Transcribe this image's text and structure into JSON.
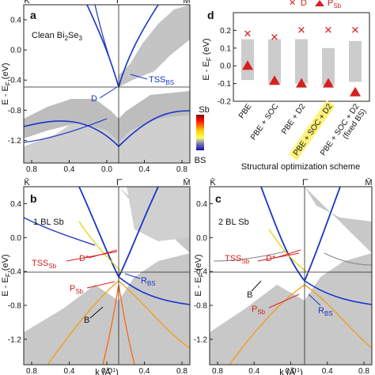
{
  "chart_data": [
    {
      "type": "other",
      "panel": "a",
      "title": "Clean Bi2Se3",
      "ylabel": "E - EF (eV)",
      "ylim": [
        -1.5,
        0.6
      ],
      "xlim": [
        -0.8,
        0.8
      ],
      "yticks": [
        "0.4",
        "0.0",
        "-0.4",
        "-0.8",
        "-1.2"
      ],
      "xticks": [
        "0.8",
        "0.4",
        "0.0",
        "0.4",
        "0.8"
      ],
      "kpoints": [
        "K̄",
        "Γ̄",
        "M̄"
      ],
      "annotations": [
        "D",
        "TSSBS"
      ]
    },
    {
      "type": "scatter",
      "panel": "d",
      "legend": [
        "D",
        "PSb"
      ],
      "ylabel": "E - EF (eV)",
      "ylim": [
        -0.2,
        0.3
      ],
      "yticks": [
        "0.2",
        "0.1",
        "0.0",
        "-0.1",
        "-0.2"
      ],
      "xlabel": "Structural optimization scheme",
      "categories": [
        "PBE",
        "PBE + SOC",
        "PBE + D2",
        "PBE + SOC + D2",
        "PBE + SOC + D2 (fixed BS)"
      ],
      "series": [
        {
          "name": "D",
          "values": [
            0.18,
            0.16,
            0.2,
            0.2,
            0.2
          ]
        },
        {
          "name": "PSb",
          "values": [
            0.0,
            -0.085,
            -0.1,
            -0.1,
            -0.15
          ]
        }
      ],
      "bars": [
        [
          -0.08,
          0.15
        ],
        [
          -0.1,
          0.15
        ],
        [
          -0.1,
          0.15
        ],
        [
          -0.11,
          0.1
        ],
        [
          -0.09,
          0.14
        ]
      ]
    },
    {
      "type": "other",
      "panel": "b",
      "title": "1 BL Sb",
      "ylabel": "E - EF (eV)",
      "ylim": [
        -1.5,
        0.6
      ],
      "yticks": [
        "0.4",
        "0.0",
        "-0.4",
        "-0.8",
        "-1.2"
      ],
      "xticks": [
        "0.8",
        "0.4",
        "0.0",
        "0.4",
        "0.8"
      ],
      "xlabel": "k (Å⁻¹)",
      "kpoints": [
        "K̄",
        "Γ̄",
        "M̄"
      ],
      "annotations": [
        "TSSSb",
        "D*",
        "PSb",
        "RBS",
        "B"
      ]
    },
    {
      "type": "other",
      "panel": "c",
      "title": "2 BL Sb",
      "ylabel": "E - EF (eV)",
      "ylim": [
        -1.5,
        0.6
      ],
      "yticks": [
        "0.4",
        "0.0",
        "-0.4",
        "-0.8",
        "-1.2"
      ],
      "xticks": [
        "0.8",
        "0.4",
        "0.0",
        "0.4",
        "0.8"
      ],
      "xlabel": "k (Å⁻¹)",
      "kpoints": [
        "K̄",
        "Γ̄",
        "M̄"
      ],
      "annotations": [
        "TSSSb",
        "D*",
        "B",
        "PSb",
        "RBS"
      ]
    }
  ],
  "colorbar": {
    "top": "Sb",
    "bottom": "BS"
  },
  "labels": {
    "panel_a": "a",
    "panel_b": "b",
    "panel_c": "c",
    "panel_d": "d",
    "title_a_main": "Clean Bi",
    "title_a_sub1": "2",
    "title_a_mid": "Se",
    "title_a_sub2": "3",
    "title_b": "1 BL Sb",
    "title_c": "2 BL Sb",
    "ylabel_main": "E - E",
    "ylabel_sub": "F",
    "ylabel_unit": " (eV)",
    "k_label": "k (Å",
    "k_exp": "-1",
    "k_close": ")",
    "D": "D",
    "TSS": "TSS",
    "BS": "BS",
    "Sb": "Sb",
    "Dstar": "D*",
    "P": "P",
    "R": "R",
    "B": "B",
    "K": "K̄",
    "G": "Γ̄",
    "M": "M̄",
    "legend_D": "D",
    "legend_P": "P",
    "legend_P_sub": "Sb",
    "xlabel_d": "Structural optimization scheme"
  }
}
